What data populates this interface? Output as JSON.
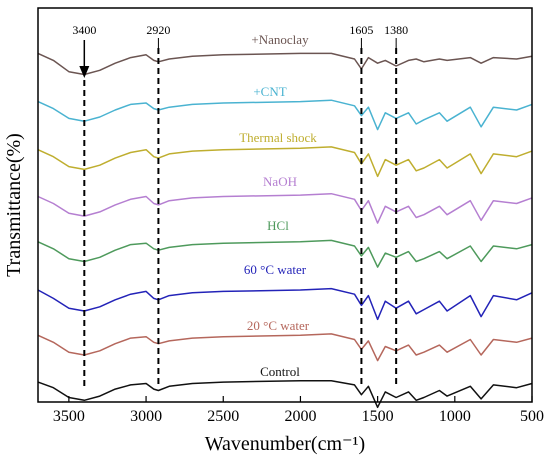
{
  "chart_data": {
    "type": "line",
    "xlabel": "Wavenumber(cm⁻¹)",
    "ylabel": "Transmittance(%)",
    "xlim": [
      3700,
      500
    ],
    "x_reversed": true,
    "x_ticks": [
      3500,
      3000,
      2500,
      2000,
      1500,
      1000,
      500
    ],
    "y_ticks_shown": false,
    "grid": false,
    "annotations": [
      {
        "label": "3400",
        "x": 3400,
        "arrow": true
      },
      {
        "label": "2920",
        "x": 2920
      },
      {
        "label": "1605",
        "x": 1605
      },
      {
        "label": "1380",
        "x": 1380
      }
    ],
    "series": [
      {
        "name": "+Nanoclay",
        "color": "#6b5552",
        "baseline": 0.5,
        "x": [
          3700,
          3600,
          3500,
          3400,
          3300,
          3200,
          3100,
          3000,
          2950,
          2920,
          2850,
          2700,
          2500,
          2000,
          1800,
          1650,
          1605,
          1560,
          1500,
          1450,
          1380,
          1300,
          1250,
          1200,
          1100,
          1050,
          900,
          830,
          750,
          600,
          500
        ],
        "y": [
          99,
          94,
          86,
          84,
          87,
          92,
          96,
          98,
          94,
          93,
          95,
          97,
          98,
          99,
          99,
          95,
          88,
          96,
          92,
          94,
          90,
          94,
          95,
          93,
          95,
          94,
          96,
          92,
          96,
          95,
          97
        ]
      },
      {
        "name": "+CNT",
        "color": "#4ab3d1",
        "baseline": 1.5,
        "x": [
          3700,
          3600,
          3500,
          3400,
          3300,
          3200,
          3100,
          3000,
          2950,
          2920,
          2850,
          2700,
          2500,
          2000,
          1800,
          1650,
          1605,
          1560,
          1500,
          1450,
          1380,
          1300,
          1250,
          1200,
          1100,
          1050,
          900,
          830,
          750,
          600,
          500
        ],
        "y": [
          98,
          93,
          86,
          84,
          87,
          92,
          96,
          97,
          93,
          92,
          94,
          96,
          97,
          98,
          99,
          95,
          88,
          94,
          78,
          90,
          86,
          90,
          82,
          85,
          90,
          84,
          94,
          80,
          94,
          92,
          96
        ]
      },
      {
        "name": "Thermal shock",
        "color": "#bfae2f",
        "baseline": 2.5,
        "x": [
          3700,
          3600,
          3500,
          3400,
          3300,
          3200,
          3100,
          3000,
          2950,
          2920,
          2850,
          2700,
          2500,
          2000,
          1800,
          1650,
          1605,
          1560,
          1500,
          1450,
          1380,
          1300,
          1250,
          1200,
          1100,
          1050,
          900,
          830,
          750,
          600,
          500
        ],
        "y": [
          97,
          92,
          85,
          83,
          86,
          91,
          95,
          97,
          92,
          91,
          94,
          96,
          97,
          98,
          99,
          95,
          87,
          94,
          78,
          90,
          86,
          90,
          82,
          84,
          90,
          84,
          94,
          80,
          94,
          92,
          96
        ]
      },
      {
        "name": "NaOH",
        "color": "#b57fd1",
        "baseline": 3.5,
        "x": [
          3700,
          3600,
          3500,
          3400,
          3300,
          3200,
          3100,
          3000,
          2950,
          2920,
          2850,
          2700,
          2500,
          2000,
          1800,
          1650,
          1605,
          1560,
          1500,
          1450,
          1380,
          1300,
          1250,
          1200,
          1100,
          1050,
          900,
          830,
          750,
          600,
          500
        ],
        "y": [
          97,
          92,
          85,
          83,
          86,
          91,
          95,
          97,
          92,
          91,
          94,
          96,
          97,
          98,
          99,
          95,
          87,
          94,
          78,
          90,
          86,
          90,
          82,
          84,
          90,
          84,
          94,
          80,
          94,
          92,
          96
        ]
      },
      {
        "name": "HCl",
        "color": "#4e9a5c",
        "baseline": 4.5,
        "x": [
          3700,
          3600,
          3500,
          3400,
          3300,
          3200,
          3100,
          3000,
          2950,
          2920,
          2850,
          2700,
          2500,
          2000,
          1800,
          1650,
          1605,
          1560,
          1500,
          1450,
          1380,
          1300,
          1250,
          1200,
          1100,
          1050,
          900,
          830,
          750,
          600,
          500
        ],
        "y": [
          98,
          93,
          86,
          84,
          87,
          92,
          96,
          97,
          93,
          92,
          94,
          96,
          97,
          98,
          99,
          95,
          88,
          94,
          80,
          90,
          87,
          91,
          84,
          86,
          91,
          86,
          95,
          84,
          95,
          93,
          96
        ]
      },
      {
        "name": "60 °C water",
        "color": "#2323b8",
        "baseline": 5.5,
        "x": [
          3700,
          3600,
          3500,
          3400,
          3300,
          3200,
          3100,
          3000,
          2950,
          2920,
          2850,
          2700,
          2500,
          2000,
          1800,
          1650,
          1605,
          1560,
          1500,
          1450,
          1380,
          1300,
          1250,
          1200,
          1100,
          1050,
          900,
          830,
          750,
          600,
          500
        ],
        "y": [
          97,
          91,
          84,
          82,
          85,
          90,
          94,
          96,
          91,
          90,
          93,
          95,
          96,
          97,
          98,
          94,
          86,
          93,
          76,
          89,
          84,
          89,
          80,
          83,
          89,
          82,
          93,
          78,
          93,
          90,
          95
        ]
      },
      {
        "name": "20 °C water",
        "color": "#b5675c",
        "baseline": 6.5,
        "x": [
          3700,
          3600,
          3500,
          3400,
          3300,
          3200,
          3100,
          3000,
          2950,
          2920,
          2850,
          2700,
          2500,
          2000,
          1800,
          1650,
          1605,
          1560,
          1500,
          1450,
          1380,
          1300,
          1250,
          1200,
          1100,
          1050,
          900,
          830,
          750,
          600,
          500
        ],
        "y": [
          98,
          93,
          86,
          84,
          87,
          92,
          96,
          97,
          93,
          92,
          94,
          96,
          97,
          98,
          99,
          95,
          88,
          94,
          80,
          90,
          87,
          91,
          84,
          86,
          91,
          86,
          95,
          84,
          95,
          93,
          96
        ]
      },
      {
        "name": "Control",
        "color": "#111111",
        "baseline": 7.5,
        "x": [
          3700,
          3600,
          3500,
          3400,
          3300,
          3200,
          3100,
          3000,
          2950,
          2920,
          2850,
          2700,
          2500,
          2000,
          1800,
          1650,
          1605,
          1560,
          1500,
          1450,
          1380,
          1300,
          1250,
          1200,
          1100,
          1050,
          900,
          830,
          750,
          600,
          500
        ],
        "y": [
          98,
          94,
          87,
          85,
          88,
          93,
          96,
          97,
          93,
          92,
          95,
          97,
          98,
          99,
          99,
          96,
          89,
          95,
          80,
          91,
          87,
          91,
          85,
          87,
          92,
          88,
          95,
          86,
          96,
          94,
          97
        ]
      }
    ]
  }
}
